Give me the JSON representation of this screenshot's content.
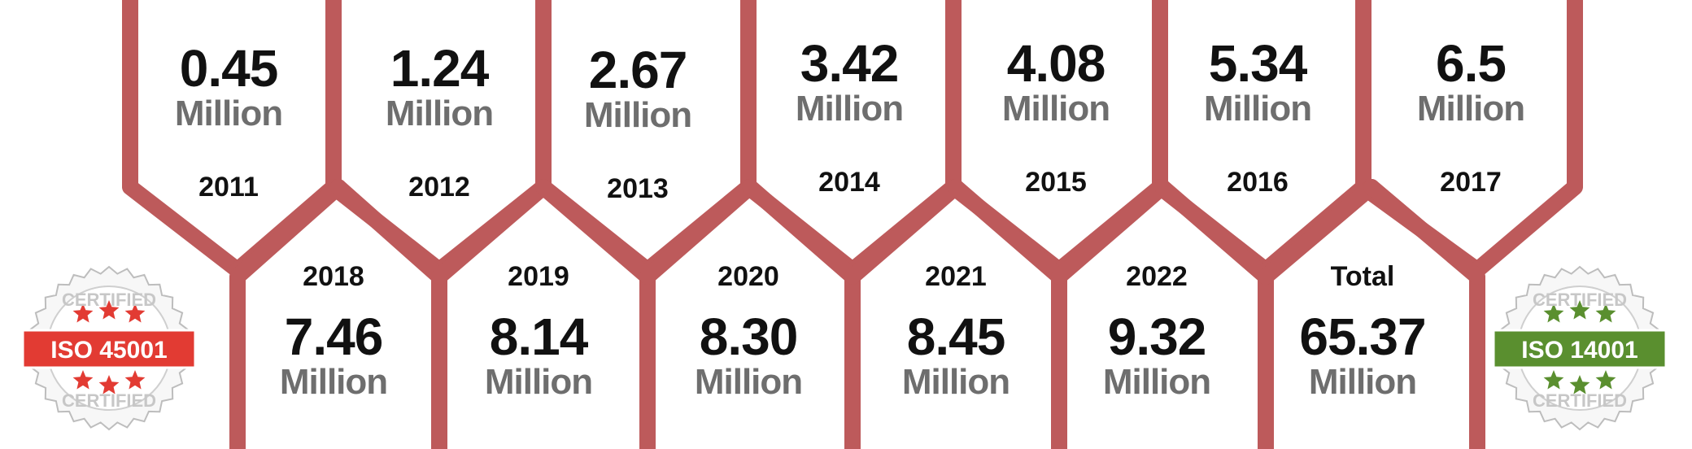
{
  "accent_color": "#bd5a5b",
  "top_row": [
    {
      "year": "2011",
      "value": "0.45",
      "unit": "Million"
    },
    {
      "year": "2012",
      "value": "1.24",
      "unit": "Million"
    },
    {
      "year": "2013",
      "value": "2.67",
      "unit": "Million"
    },
    {
      "year": "2014",
      "value": "3.42",
      "unit": "Million"
    },
    {
      "year": "2015",
      "value": "4.08",
      "unit": "Million"
    },
    {
      "year": "2016",
      "value": "5.34",
      "unit": "Million"
    },
    {
      "year": "2017",
      "value": "6.5",
      "unit": "Million"
    }
  ],
  "bottom_row": [
    {
      "year": "2018",
      "value": "7.46",
      "unit": "Million"
    },
    {
      "year": "2019",
      "value": "8.14",
      "unit": "Million"
    },
    {
      "year": "2020",
      "value": "8.30",
      "unit": "Million"
    },
    {
      "year": "2021",
      "value": "8.45",
      "unit": "Million"
    },
    {
      "year": "2022",
      "value": "9.32",
      "unit": "Million"
    },
    {
      "year": "Total",
      "value": "65.37",
      "unit": "Million"
    }
  ],
  "badges": {
    "left": {
      "label": "ISO 45001",
      "ring_text": "CERTIFIED",
      "color": "#e23b33",
      "icon": "star-seal-icon"
    },
    "right": {
      "label": "ISO 14001",
      "ring_text": "CERTIFIED",
      "color": "#5a8f2f",
      "icon": "star-seal-icon"
    }
  }
}
